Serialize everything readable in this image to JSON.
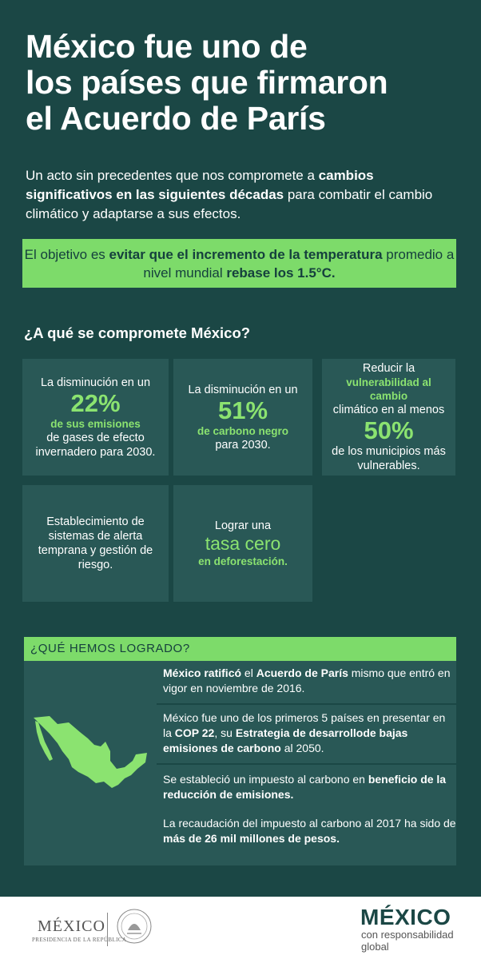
{
  "title": {
    "line1": "México fue uno de",
    "line2": "los países que firmaron",
    "line3": "el Acuerdo de París"
  },
  "intro": {
    "t1": "Un acto sin precedentes que nos compromete a ",
    "b1": "cambios significativos en las siguientes décadas",
    "t2": " para combatir el cambio climático y adaptarse a sus efectos."
  },
  "goal": {
    "t1": "El objetivo es ",
    "b1": "evitar que el incremento de la temperatura",
    "t2": " promedio a nivel mundial ",
    "b2": "rebase los 1.5°C."
  },
  "question": "¿A qué se compromete México?",
  "cards": {
    "c1": {
      "pre": "La disminución en un",
      "big": "22%",
      "green": "de sus emisiones",
      "post": "de gases de efecto invernadero para 2030."
    },
    "c2": {
      "pre": "La disminución en un",
      "big": "51%",
      "green": "de carbono negro",
      "post": "para 2030."
    },
    "c3": {
      "pre": "Reducir la",
      "green": "vulnerabilidad al cambio",
      "mid": "climático en al menos",
      "big": "50%",
      "post": "de los municipios más vulnerables."
    },
    "c4": {
      "text": "Establecimiento de sistemas de alerta temprana y gestión de riesgo."
    },
    "c5": {
      "pre": "Lograr una",
      "big": "tasa cero",
      "green": "en deforestación."
    }
  },
  "achieved": {
    "header": "¿QUÉ HEMOS LOGRADO?",
    "i1": {
      "b1": "México ratificó",
      "t1": " el ",
      "b2": "Acuerdo de París",
      "t2": " mismo que entró en vigor en noviembre de 2016."
    },
    "i2": {
      "t1": "México fue uno de los primeros 5 países en presentar en la ",
      "b1": "COP 22",
      "t2": ", su ",
      "b2": "Estrategia de desarrollode bajas emisiones de carbono",
      "t3": " al 2050."
    },
    "i3": {
      "t1": "Se estableció un impuesto al carbono en ",
      "b1": "beneficio de la reducción de emisiones."
    },
    "i4": {
      "t1": "La recaudación del impuesto al carbono al 2017 ha sido de ",
      "b1": "más de 26 mil millones de pesos."
    }
  },
  "footer": {
    "mexico": "MÉXICO",
    "presidencia": "PRESIDENCIA DE LA REPÚBLICA",
    "brand": "MÉXICO",
    "tag1": "con responsabilidad",
    "tag2": "global"
  },
  "colors": {
    "background": "#1b4745",
    "card": "#295856",
    "accent": "#7ddb6a"
  }
}
